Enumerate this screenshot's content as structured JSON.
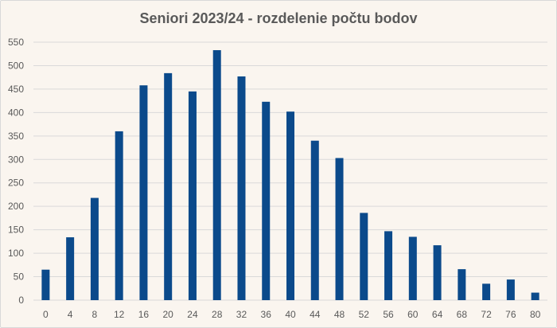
{
  "chart_data": {
    "type": "bar",
    "title": "Seniori 2023/24 - rozdelenie počtu bodov",
    "xlabel": "",
    "ylabel": "",
    "categories": [
      "0",
      "4",
      "8",
      "12",
      "16",
      "20",
      "24",
      "28",
      "32",
      "36",
      "40",
      "44",
      "48",
      "52",
      "56",
      "60",
      "64",
      "68",
      "72",
      "76",
      "80"
    ],
    "values": [
      65,
      134,
      218,
      360,
      458,
      484,
      445,
      533,
      477,
      423,
      402,
      340,
      303,
      186,
      147,
      135,
      117,
      66,
      35,
      44,
      16
    ],
    "ylim": [
      0,
      550
    ],
    "yticks": [
      "0",
      "50",
      "100",
      "150",
      "200",
      "250",
      "300",
      "350",
      "400",
      "450",
      "500",
      "550"
    ],
    "grid": true,
    "legend": "none",
    "colors": {
      "bar": "#0b4a8b",
      "grid": "#d9d9d9",
      "background": "#faf5ef"
    }
  }
}
